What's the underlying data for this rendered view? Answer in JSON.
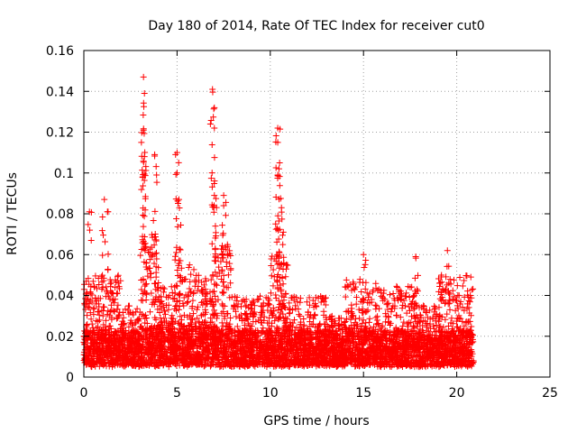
{
  "chart_data": {
    "type": "scatter",
    "title": "Day 180 of 2014, Rate Of TEC Index for receiver cut0",
    "xlabel": "GPS time / hours",
    "ylabel": "ROTI / TECUs",
    "xlim": [
      0,
      25
    ],
    "ylim": [
      0,
      0.16
    ],
    "xticks": [
      "0",
      "5",
      "10",
      "15",
      "20",
      "25"
    ],
    "yticks": [
      "0",
      "0.02",
      "0.04",
      "0.06",
      "0.08",
      "0.1",
      "0.12",
      "0.14",
      "0.16"
    ],
    "grid": true,
    "marker": "+",
    "color": "#ff0000",
    "data_extent_hours": [
      0,
      20.9
    ],
    "peaks": [
      {
        "x": 0.3,
        "y": 0.081
      },
      {
        "x": 1.1,
        "y": 0.087
      },
      {
        "x": 1.3,
        "y": 0.081
      },
      {
        "x": 3.2,
        "y": 0.147
      },
      {
        "x": 3.25,
        "y": 0.139
      },
      {
        "x": 3.2,
        "y": 0.121
      },
      {
        "x": 3.25,
        "y": 0.108
      },
      {
        "x": 3.8,
        "y": 0.109
      },
      {
        "x": 3.9,
        "y": 0.099
      },
      {
        "x": 5.0,
        "y": 0.11
      },
      {
        "x": 5.0,
        "y": 0.1
      },
      {
        "x": 5.1,
        "y": 0.087
      },
      {
        "x": 6.9,
        "y": 0.141
      },
      {
        "x": 7.0,
        "y": 0.132
      },
      {
        "x": 7.0,
        "y": 0.122
      },
      {
        "x": 7.0,
        "y": 0.089
      },
      {
        "x": 7.5,
        "y": 0.089
      },
      {
        "x": 7.5,
        "y": 0.084
      },
      {
        "x": 10.4,
        "y": 0.122
      },
      {
        "x": 10.4,
        "y": 0.115
      },
      {
        "x": 10.5,
        "y": 0.105
      },
      {
        "x": 10.4,
        "y": 0.099
      },
      {
        "x": 10.6,
        "y": 0.083
      },
      {
        "x": 10.7,
        "y": 0.071
      },
      {
        "x": 15.0,
        "y": 0.06
      },
      {
        "x": 17.8,
        "y": 0.059
      },
      {
        "x": 19.5,
        "y": 0.062
      }
    ],
    "bands": [
      {
        "x0": 0.0,
        "x1": 2.0,
        "base": 0.01,
        "upper": 0.05
      },
      {
        "x0": 2.0,
        "x1": 3.0,
        "base": 0.01,
        "upper": 0.035
      },
      {
        "x0": 3.0,
        "x1": 4.0,
        "base": 0.012,
        "upper": 0.07
      },
      {
        "x0": 4.0,
        "x1": 5.0,
        "base": 0.011,
        "upper": 0.045
      },
      {
        "x0": 5.0,
        "x1": 6.0,
        "base": 0.012,
        "upper": 0.055
      },
      {
        "x0": 6.0,
        "x1": 7.0,
        "base": 0.012,
        "upper": 0.05
      },
      {
        "x0": 7.0,
        "x1": 8.0,
        "base": 0.012,
        "upper": 0.065
      },
      {
        "x0": 8.0,
        "x1": 10.0,
        "base": 0.01,
        "upper": 0.04
      },
      {
        "x0": 10.0,
        "x1": 11.0,
        "base": 0.012,
        "upper": 0.06
      },
      {
        "x0": 11.0,
        "x1": 13.0,
        "base": 0.01,
        "upper": 0.04
      },
      {
        "x0": 13.0,
        "x1": 14.0,
        "base": 0.008,
        "upper": 0.03
      },
      {
        "x0": 14.0,
        "x1": 16.0,
        "base": 0.01,
        "upper": 0.048
      },
      {
        "x0": 16.0,
        "x1": 18.0,
        "base": 0.01,
        "upper": 0.045
      },
      {
        "x0": 18.0,
        "x1": 19.0,
        "base": 0.008,
        "upper": 0.035
      },
      {
        "x0": 19.0,
        "x1": 20.9,
        "base": 0.01,
        "upper": 0.05
      }
    ]
  }
}
